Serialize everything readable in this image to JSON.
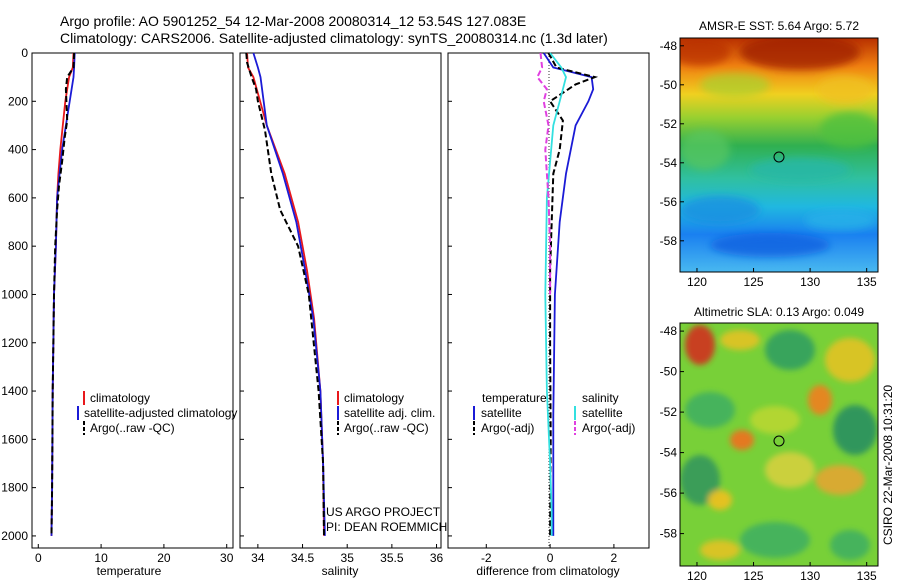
{
  "header": {
    "line1": "Argo profile: AO 5901252_54 12-Mar-2008 20080314_12 53.54S 127.083E",
    "line2": "Climatology: CARS2006. Satellite-adjusted climatology: synTS_20080314.nc (1.3d later)"
  },
  "project_text": {
    "line1": "US ARGO PROJECT",
    "line2": "PI: DEAN ROEMMICH"
  },
  "side_label": "CSIRO 22-Mar-2008 10:31:20",
  "colors": {
    "climatology": "#e8181c",
    "satellite": "#1b1bd6",
    "argo": "#000000",
    "salinity_satellite": "#33e0e0",
    "salinity_argo": "#e040e0"
  },
  "chart_data": [
    {
      "type": "line",
      "title": "",
      "xlabel": "temperature",
      "ylabel": "",
      "xlim": [
        -1,
        31
      ],
      "ylim": [
        0,
        2050
      ],
      "y_reversed": true,
      "x_ticks": [
        "0",
        "10",
        "20",
        "30"
      ],
      "y_ticks": [
        "0",
        "200",
        "400",
        "600",
        "800",
        "1000",
        "1200",
        "1400",
        "1600",
        "1800",
        "2000"
      ],
      "legend": [
        "climatology",
        "satellite-adjusted climatology",
        "Argo(..raw -QC)"
      ],
      "series": [
        {
          "name": "climatology",
          "style": "solid",
          "x": [
            5.6,
            5.5,
            4.9,
            4.3,
            3.9,
            3.5,
            3.2,
            3.0,
            2.8,
            2.5,
            2.3,
            2.2,
            2.1
          ],
          "y": [
            0,
            60,
            100,
            200,
            300,
            400,
            500,
            600,
            800,
            1000,
            1400,
            1800,
            2000
          ]
        },
        {
          "name": "satellite",
          "style": "solid",
          "x": [
            5.8,
            5.7,
            5.6,
            5.0,
            4.4,
            3.8,
            3.4,
            3.0,
            2.8,
            2.5,
            2.3,
            2.2,
            2.1
          ],
          "y": [
            0,
            60,
            100,
            200,
            300,
            400,
            500,
            600,
            800,
            1000,
            1400,
            1800,
            2000
          ]
        },
        {
          "name": "Argo",
          "style": "dashed",
          "x": [
            5.7,
            5.6,
            4.6,
            4.4,
            4.6,
            4.2,
            3.8,
            3.3,
            3.0,
            2.7,
            2.5,
            2.3,
            2.2,
            2.1
          ],
          "y": [
            0,
            60,
            100,
            150,
            280,
            350,
            450,
            550,
            650,
            800,
            1000,
            1400,
            1800,
            2000
          ]
        }
      ]
    },
    {
      "type": "line",
      "title": "",
      "xlabel": "salinity",
      "ylabel": "",
      "xlim": [
        33.8,
        36.05
      ],
      "ylim": [
        0,
        2050
      ],
      "y_reversed": true,
      "x_ticks": [
        "34",
        "34.5",
        "35",
        "35.5",
        "36"
      ],
      "legend": [
        "climatology",
        "satellite adj. clim.",
        "Argo(..raw -QC)"
      ],
      "series": [
        {
          "name": "climatology",
          "style": "solid",
          "x": [
            33.88,
            33.89,
            33.95,
            34.1,
            34.3,
            34.45,
            34.55,
            34.63,
            34.7,
            34.73,
            34.74
          ],
          "y": [
            0,
            60,
            100,
            300,
            500,
            700,
            900,
            1100,
            1400,
            1700,
            2000
          ]
        },
        {
          "name": "satellite",
          "style": "solid",
          "x": [
            33.95,
            34.0,
            34.03,
            34.1,
            34.28,
            34.43,
            34.53,
            34.62,
            34.7,
            34.73,
            34.75
          ],
          "y": [
            0,
            60,
            100,
            300,
            500,
            700,
            900,
            1100,
            1400,
            1700,
            2000
          ]
        },
        {
          "name": "Argo",
          "style": "dashed",
          "x": [
            33.87,
            33.88,
            33.93,
            33.98,
            34.0,
            34.08,
            34.15,
            34.25,
            34.45,
            34.57,
            34.68,
            34.73,
            34.74
          ],
          "y": [
            0,
            40,
            100,
            150,
            200,
            320,
            500,
            650,
            800,
            1000,
            1400,
            1700,
            2000
          ]
        }
      ]
    },
    {
      "type": "line",
      "title": "",
      "xlabel": "difference from climatology",
      "ylabel": "",
      "xlim": [
        -3.2,
        3.1
      ],
      "ylim": [
        0,
        2050
      ],
      "y_reversed": true,
      "x_ticks": [
        "-2",
        "0",
        "2"
      ],
      "legend_titles": [
        "temperature",
        "salinity"
      ],
      "legend": [
        "satellite",
        "Argo(-adj)",
        "satellite",
        "Argo(-adj)"
      ],
      "series": [
        {
          "name": "temperature satellite",
          "style": "solid",
          "x": [
            -0.2,
            0.1,
            1.3,
            1.35,
            1.2,
            0.8,
            0.5,
            0.3,
            0.15,
            0.1,
            0.1
          ],
          "y": [
            0,
            60,
            100,
            150,
            200,
            300,
            500,
            700,
            1000,
            1500,
            2000
          ]
        },
        {
          "name": "temperature Argo",
          "style": "dashed",
          "x": [
            -0.05,
            0.2,
            1.4,
            0.8,
            0.0,
            0.4,
            0.3,
            0.1,
            0.05,
            0.0,
            0.0,
            0.02,
            0.0
          ],
          "y": [
            0,
            60,
            100,
            130,
            200,
            280,
            400,
            500,
            700,
            900,
            1200,
            1600,
            2000
          ]
        },
        {
          "name": "salinity satellite",
          "style": "solid",
          "x": [
            0.0,
            0.35,
            0.5,
            0.4,
            0.1,
            -0.1,
            -0.15,
            -0.1,
            0.0,
            0.05,
            0.05
          ],
          "y": [
            0,
            60,
            100,
            150,
            300,
            600,
            1000,
            1400,
            1700,
            1900,
            2000
          ]
        },
        {
          "name": "salinity Argo",
          "style": "dashed",
          "x": [
            -0.3,
            -0.25,
            -0.4,
            -0.1,
            -0.2,
            -0.05,
            -0.15,
            -0.05,
            0.0,
            0.0
          ],
          "y": [
            0,
            60,
            100,
            150,
            200,
            300,
            400,
            600,
            800,
            1000
          ]
        }
      ]
    },
    {
      "type": "heatmap",
      "title": "AMSR-E SST: 5.64 Argo: 5.72",
      "xlim": [
        118.5,
        136
      ],
      "ylim": [
        -59.6,
        -47.6
      ],
      "x_ticks": [
        "120",
        "125",
        "130",
        "135"
      ],
      "y_ticks": [
        "-48",
        "-50",
        "-52",
        "-54",
        "-56",
        "-58"
      ],
      "marker": {
        "lon": 127.083,
        "lat": -53.54
      }
    },
    {
      "type": "heatmap",
      "title": "Altimetric SLA: 0.13 Argo: 0.049",
      "xlim": [
        118.5,
        136
      ],
      "ylim": [
        -59.6,
        -47.6
      ],
      "x_ticks": [
        "120",
        "125",
        "130",
        "135"
      ],
      "y_ticks": [
        "-48",
        "-50",
        "-52",
        "-54",
        "-56",
        "-58"
      ],
      "marker": {
        "lon": 127.083,
        "lat": -53.54
      }
    }
  ]
}
